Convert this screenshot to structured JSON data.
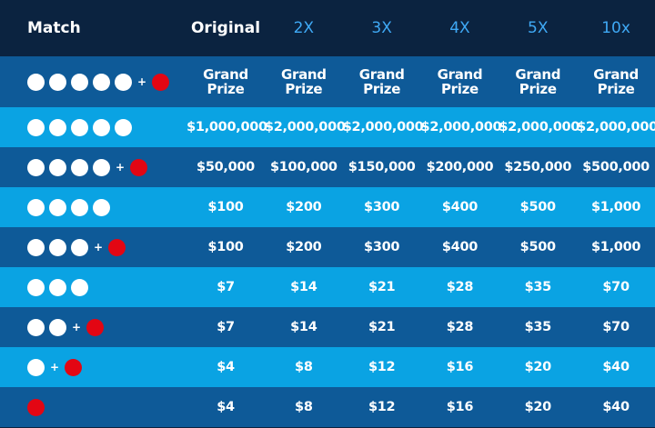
{
  "header": {
    "match": "Match",
    "columns": [
      "Original",
      "2X",
      "3X",
      "4X",
      "5X",
      "10x"
    ]
  },
  "colors": {
    "header_bg": "#0b2340",
    "row_dark": "#0e5a98",
    "row_light": "#0aa3e3",
    "multiplier_text": "#3fa9f5",
    "white_ball": "#ffffff",
    "red_ball": "#e30613"
  },
  "plus_sign": "+",
  "rows": [
    {
      "white": 5,
      "red": true,
      "prizes": [
        "Grand Prize",
        "Grand Prize",
        "Grand Prize",
        "Grand Prize",
        "Grand Prize",
        "Grand Prize"
      ]
    },
    {
      "white": 5,
      "red": false,
      "prizes": [
        "$1,000,000",
        "$2,000,000",
        "$2,000,000",
        "$2,000,000",
        "$2,000,000",
        "$2,000,000"
      ]
    },
    {
      "white": 4,
      "red": true,
      "prizes": [
        "$50,000",
        "$100,000",
        "$150,000",
        "$200,000",
        "$250,000",
        "$500,000"
      ]
    },
    {
      "white": 4,
      "red": false,
      "prizes": [
        "$100",
        "$200",
        "$300",
        "$400",
        "$500",
        "$1,000"
      ]
    },
    {
      "white": 3,
      "red": true,
      "prizes": [
        "$100",
        "$200",
        "$300",
        "$400",
        "$500",
        "$1,000"
      ]
    },
    {
      "white": 3,
      "red": false,
      "prizes": [
        "$7",
        "$14",
        "$21",
        "$28",
        "$35",
        "$70"
      ]
    },
    {
      "white": 2,
      "red": true,
      "prizes": [
        "$7",
        "$14",
        "$21",
        "$28",
        "$35",
        "$70"
      ]
    },
    {
      "white": 1,
      "red": true,
      "prizes": [
        "$4",
        "$8",
        "$12",
        "$16",
        "$20",
        "$40"
      ]
    },
    {
      "white": 0,
      "red": true,
      "prizes": [
        "$4",
        "$8",
        "$12",
        "$16",
        "$20",
        "$40"
      ]
    }
  ]
}
